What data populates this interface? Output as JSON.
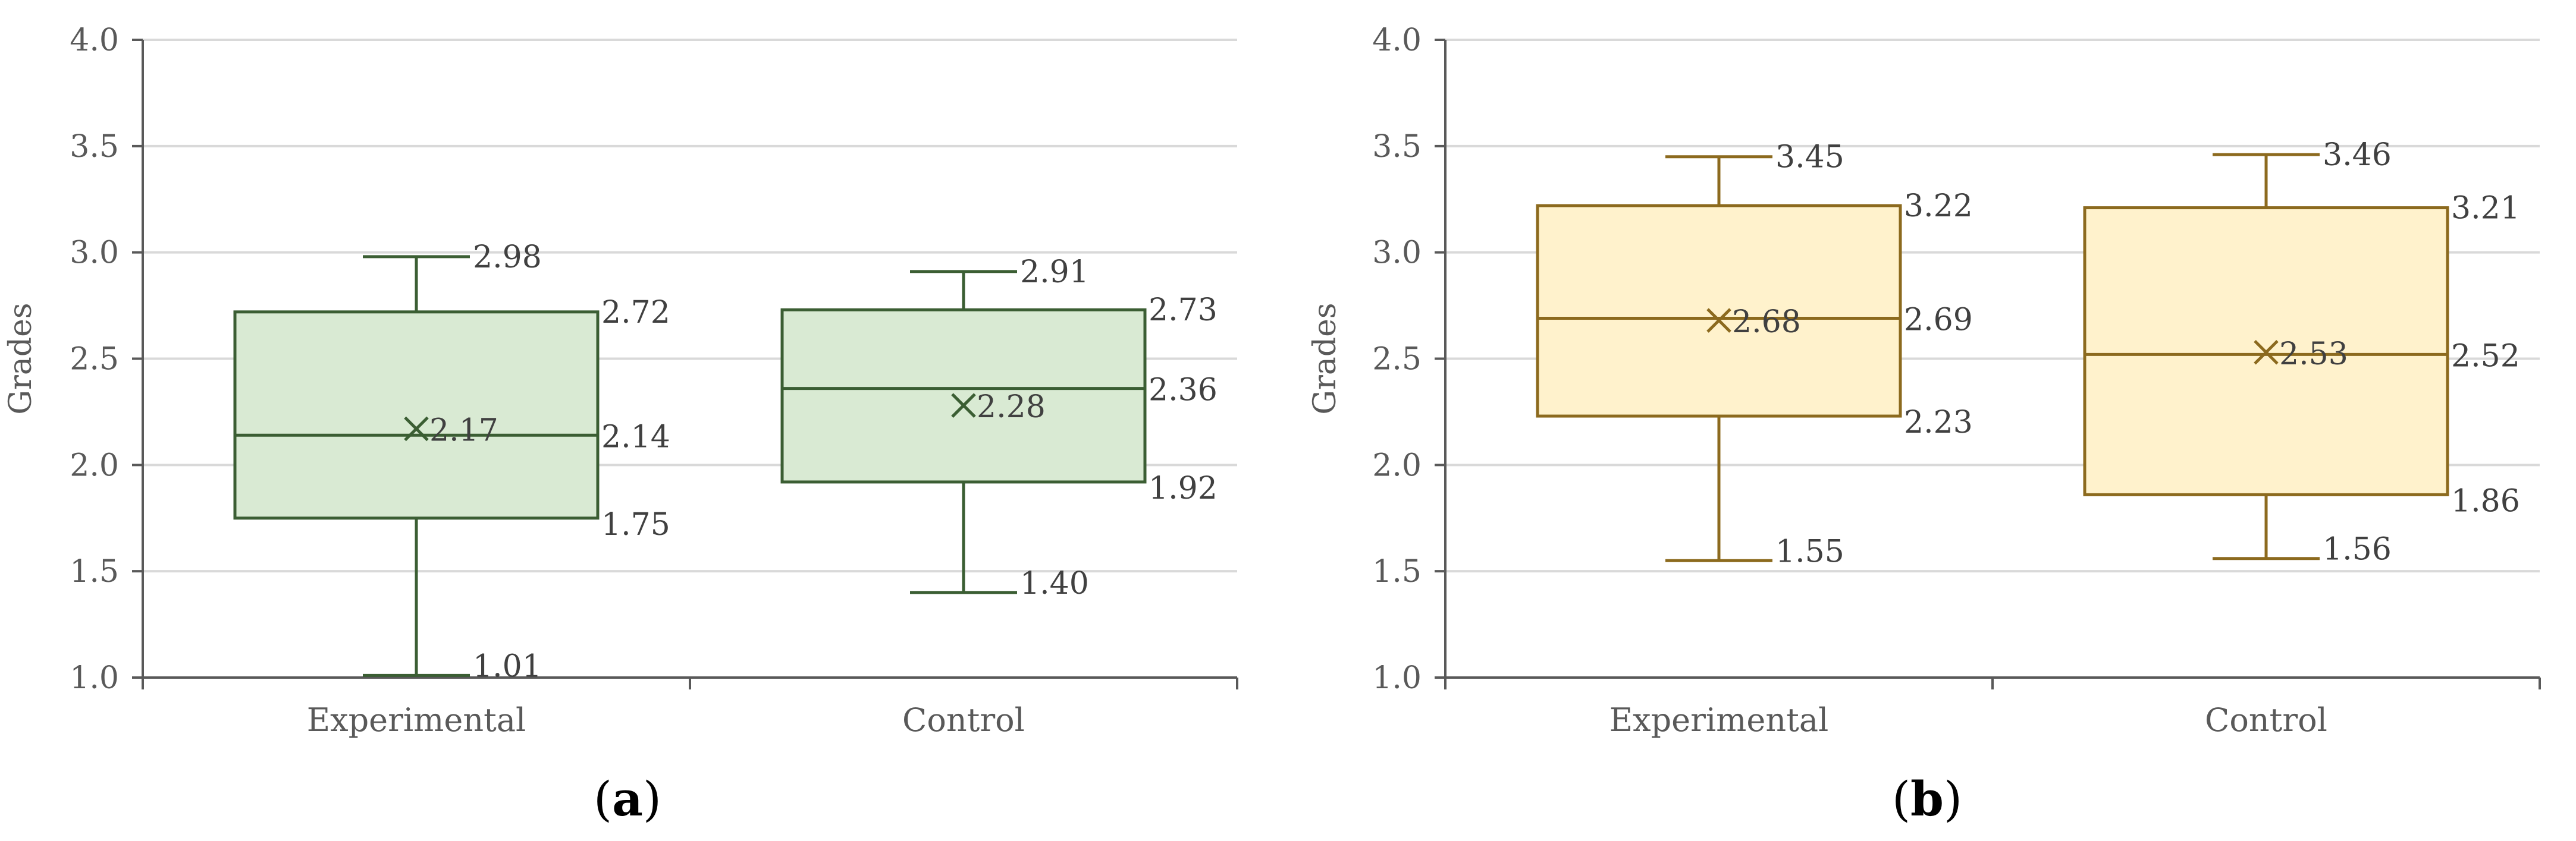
{
  "chart_data": [
    {
      "type": "boxplot",
      "panel_label": "a",
      "ylabel": "Grades",
      "xlabel": "",
      "ylim": [
        1.0,
        4.0
      ],
      "yticks": [
        "1.0",
        "1.5",
        "2.0",
        "2.5",
        "3.0",
        "3.5",
        "4.0"
      ],
      "grid": true,
      "colors": {
        "fill": "#d9ead3",
        "stroke": "#3b5e33",
        "mean": "#3b5e33"
      },
      "categories": [
        "Experimental",
        "Control"
      ],
      "boxes": [
        {
          "category": "Experimental",
          "min": 1.01,
          "q1": 1.75,
          "median": 2.14,
          "mean": 2.17,
          "q3": 2.72,
          "max": 2.98,
          "labels": {
            "min": "1.01",
            "q1": "1.75",
            "median": "2.14",
            "mean": "2.17",
            "q3": "2.72",
            "max": "2.98"
          }
        },
        {
          "category": "Control",
          "min": 1.4,
          "q1": 1.92,
          "median": 2.36,
          "mean": 2.28,
          "q3": 2.73,
          "max": 2.91,
          "labels": {
            "min": "1.40",
            "q1": "1.92",
            "median": "2.36",
            "mean": "2.28",
            "q3": "2.73",
            "max": "2.91"
          }
        }
      ]
    },
    {
      "type": "boxplot",
      "panel_label": "b",
      "ylabel": "Grades",
      "xlabel": "",
      "ylim": [
        1.0,
        4.0
      ],
      "yticks": [
        "1.0",
        "1.5",
        "2.0",
        "2.5",
        "3.0",
        "3.5",
        "4.0"
      ],
      "grid": true,
      "colors": {
        "fill": "#fff2cc",
        "stroke": "#8c6a1e",
        "mean": "#8c6a1e"
      },
      "categories": [
        "Experimental",
        "Control"
      ],
      "boxes": [
        {
          "category": "Experimental",
          "min": 1.55,
          "q1": 2.23,
          "median": 2.69,
          "mean": 2.68,
          "q3": 3.22,
          "max": 3.45,
          "labels": {
            "min": "1.55",
            "q1": "2.23",
            "median": "2.69",
            "mean": "2.68",
            "q3": "3.22",
            "max": "3.45"
          }
        },
        {
          "category": "Control",
          "min": 1.56,
          "q1": 1.86,
          "median": 2.52,
          "mean": 2.53,
          "q3": 3.21,
          "max": 3.46,
          "labels": {
            "min": "1.56",
            "q1": "1.86",
            "median": "2.52",
            "mean": "2.53",
            "q3": "3.21",
            "max": "3.46"
          }
        }
      ]
    }
  ]
}
